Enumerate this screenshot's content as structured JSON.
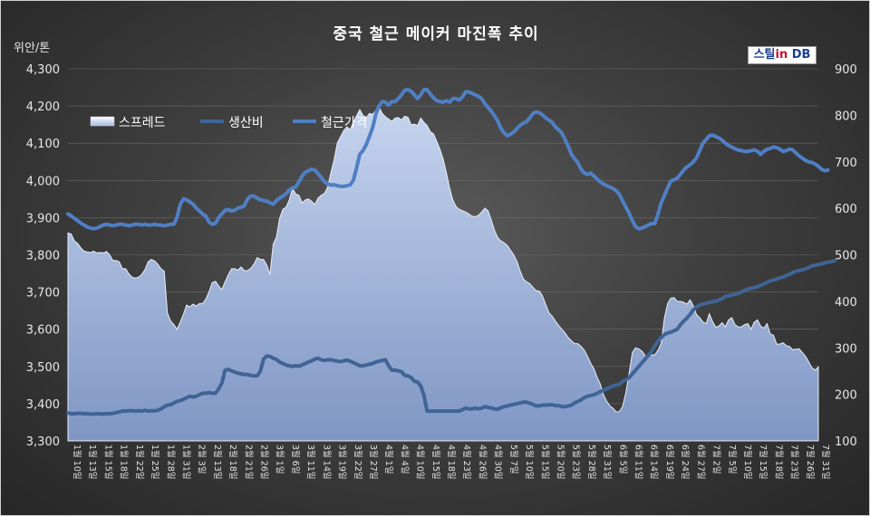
{
  "chart_data": {
    "type": "line",
    "title": "중국 철근 메이커 마진폭 추이",
    "left_unit": "위안/톤",
    "logo": {
      "text_main": "스틸",
      "text_in": "in",
      "text_db": "DB"
    },
    "y_left": {
      "min": 3300,
      "max": 4300,
      "ticks": [
        "3,300",
        "3,400",
        "3,500",
        "3,600",
        "3,700",
        "3,800",
        "3,900",
        "4,000",
        "4,100",
        "4,200",
        "4,300"
      ]
    },
    "y_right": {
      "min": 100,
      "max": 900,
      "ticks": [
        "100",
        "200",
        "300",
        "400",
        "500",
        "600",
        "700",
        "800",
        "900"
      ]
    },
    "legend": [
      "스프레드",
      "생산비",
      "철근가격"
    ],
    "colors": {
      "spread_fill_top": "#c5d4ee",
      "spread_fill_bottom": "#7f96c4",
      "production_cost": "#3f6495",
      "rebar_price": "#4f7fc4"
    },
    "x_labels": [
      "1월 10일",
      "1월 13일",
      "1월 15일",
      "1월 18일",
      "1월 22일",
      "1월 25일",
      "1월 28일",
      "1월 31일",
      "2월 3일",
      "2월 13일",
      "2월 18일",
      "2월 21일",
      "2월 26일",
      "3월 1일",
      "3월 6일",
      "3월 11일",
      "3월 14일",
      "3월 19일",
      "3월 22일",
      "3월 27일",
      "4월 1일",
      "4월 4일",
      "4월 10일",
      "4월 15일",
      "4월 18일",
      "4월 23일",
      "4월 26일",
      "4월 30일",
      "5월 7일",
      "5월 10일",
      "5월 15일",
      "5월 20일",
      "5월 23일",
      "5월 28일",
      "5월 31일",
      "6월 5일",
      "6월 11일",
      "6월 14일",
      "6월 19일",
      "6월 24일",
      "6월 27일",
      "7월 2일",
      "7월 5일",
      "7월 10일",
      "7월 15일",
      "7월 18일",
      "7월 23일",
      "7월 26일",
      "7월 31일"
    ],
    "series": [
      {
        "name": "스프레드",
        "axis": "right",
        "kind": "area",
        "values": [
          547,
          545,
          530,
          525,
          515,
          508,
          506,
          505,
          508,
          504,
          505,
          504,
          507,
          500,
          488,
          488,
          485,
          470,
          470,
          459,
          452,
          450,
          452,
          458,
          468,
          485,
          490,
          487,
          480,
          470,
          465,
          375,
          358,
          350,
          340,
          355,
          372,
          392,
          388,
          394,
          390,
          395,
          395,
          405,
          421,
          440,
          443,
          433,
          425,
          442,
          457,
          470,
          470,
          467,
          474,
          466,
          466,
          471,
          480,
          494,
          490,
          490,
          478,
          458,
          523,
          538,
          578,
          598,
          602,
          618,
          644,
          631,
          628,
          612,
          618,
          620,
          615,
          608,
          622,
          628,
          632,
          646,
          677,
          705,
          740,
          754,
          767,
          775,
          769,
          785,
          799,
          812,
          800,
          794,
          804,
          802,
          810,
          818,
          804,
          797,
          792,
          787,
          794,
          795,
          790,
          798,
          796,
          780,
          781,
          778,
          794,
          785,
          778,
          765,
          760,
          744,
          727,
          706,
          677,
          644,
          618,
          604,
          598,
          595,
          592,
          588,
          583,
          582,
          585,
          592,
          600,
          595,
          575,
          553,
          537,
          530,
          526,
          520,
          510,
          500,
          486,
          466,
          448,
          442,
          438,
          430,
          423,
          422,
          411,
          393,
          375,
          368,
          358,
          348,
          340,
          332,
          322,
          315,
          309,
          309,
          303,
          295,
          282,
          267,
          255,
          237,
          222,
          199,
          185,
          175,
          170,
          162,
          163,
          175,
          205,
          245,
          290,
          300,
          298,
          293,
          283,
          282,
          285,
          285,
          295,
          310,
          365,
          395,
          407,
          408,
          400,
          400,
          398,
          394,
          403,
          390,
          372,
          365,
          356,
          352,
          373,
          357,
          344,
          347,
          354,
          345,
          360,
          365,
          350,
          345,
          345,
          350,
          352,
          340,
          355,
          360,
          347,
          342,
          352,
          330,
          327,
          308,
          308,
          311,
          305,
          303,
          296,
          297,
          298,
          290,
          282,
          270,
          257,
          252,
          259
        ]
      },
      {
        "name": "생산비",
        "axis": "left",
        "kind": "line",
        "values": [
          3375,
          3373,
          3373,
          3374,
          3374,
          3373,
          3373,
          3372,
          3372,
          3373,
          3373,
          3372,
          3373,
          3373,
          3374,
          3376,
          3378,
          3380,
          3380,
          3381,
          3381,
          3380,
          3381,
          3380,
          3382,
          3380,
          3381,
          3381,
          3382,
          3386,
          3392,
          3396,
          3397,
          3402,
          3406,
          3408,
          3412,
          3416,
          3420,
          3418,
          3420,
          3424,
          3428,
          3428,
          3430,
          3428,
          3428,
          3440,
          3455,
          3490,
          3492,
          3488,
          3485,
          3482,
          3480,
          3478,
          3478,
          3476,
          3475,
          3475,
          3487,
          3520,
          3528,
          3527,
          3522,
          3519,
          3512,
          3508,
          3504,
          3502,
          3500,
          3502,
          3501,
          3504,
          3508,
          3512,
          3515,
          3520,
          3522,
          3518,
          3516,
          3518,
          3518,
          3516,
          3514,
          3513,
          3515,
          3517,
          3514,
          3510,
          3506,
          3502,
          3502,
          3504,
          3506,
          3508,
          3512,
          3514,
          3516,
          3518,
          3502,
          3490,
          3490,
          3488,
          3486,
          3476,
          3475,
          3470,
          3460,
          3458,
          3448,
          3422,
          3380,
          3380,
          3380,
          3380,
          3380,
          3380,
          3380,
          3380,
          3380,
          3380,
          3380,
          3384,
          3388,
          3386,
          3386,
          3388,
          3386,
          3388,
          3392,
          3390,
          3388,
          3386,
          3385,
          3389,
          3392,
          3394,
          3396,
          3398,
          3400,
          3402,
          3404,
          3404,
          3401,
          3398,
          3394,
          3394,
          3396,
          3396,
          3397,
          3397,
          3395,
          3395,
          3392,
          3392,
          3394,
          3396,
          3402,
          3406,
          3410,
          3416,
          3420,
          3422,
          3424,
          3428,
          3432,
          3436,
          3440,
          3444,
          3448,
          3450,
          3452,
          3460,
          3464,
          3470,
          3480,
          3490,
          3500,
          3510,
          3520,
          3530,
          3540,
          3555,
          3568,
          3578,
          3586,
          3590,
          3592,
          3596,
          3600,
          3612,
          3622,
          3630,
          3640,
          3652,
          3660,
          3665,
          3668,
          3670,
          3672,
          3674,
          3676,
          3678,
          3682,
          3688,
          3690,
          3692,
          3694,
          3696,
          3700,
          3704,
          3708,
          3710,
          3712,
          3714,
          3718,
          3722,
          3726,
          3730,
          3732,
          3735,
          3738,
          3740,
          3744,
          3748,
          3752,
          3756,
          3758,
          3760,
          3762,
          3766,
          3770,
          3772,
          3774,
          3776,
          3778,
          3780,
          3782,
          3784
        ]
      },
      {
        "name": "철근가격",
        "axis": "left",
        "kind": "line",
        "values": [
          3910,
          3905,
          3898,
          3892,
          3885,
          3880,
          3875,
          3872,
          3870,
          3872,
          3876,
          3880,
          3882,
          3880,
          3878,
          3880,
          3882,
          3882,
          3880,
          3878,
          3880,
          3882,
          3882,
          3880,
          3882,
          3880,
          3880,
          3882,
          3880,
          3880,
          3878,
          3880,
          3882,
          3882,
          3900,
          3935,
          3950,
          3948,
          3942,
          3936,
          3926,
          3918,
          3910,
          3904,
          3888,
          3882,
          3885,
          3900,
          3910,
          3920,
          3922,
          3918,
          3920,
          3926,
          3928,
          3932,
          3950,
          3958,
          3958,
          3952,
          3948,
          3946,
          3944,
          3940,
          3936,
          3946,
          3952,
          3958,
          3964,
          3974,
          3980,
          3982,
          3996,
          4012,
          4022,
          4026,
          4030,
          4028,
          4018,
          4008,
          3996,
          3990,
          3988,
          3988,
          3986,
          3984,
          3984,
          3986,
          3988,
          4000,
          4034,
          4070,
          4080,
          4096,
          4118,
          4142,
          4178,
          4200,
          4212,
          4210,
          4202,
          4212,
          4212,
          4220,
          4230,
          4242,
          4244,
          4240,
          4230,
          4220,
          4230,
          4244,
          4244,
          4232,
          4222,
          4214,
          4212,
          4210,
          4214,
          4210,
          4220,
          4220,
          4216,
          4224,
          4238,
          4238,
          4234,
          4230,
          4226,
          4220,
          4206,
          4196,
          4186,
          4174,
          4160,
          4140,
          4128,
          4120,
          4124,
          4130,
          4140,
          4148,
          4154,
          4158,
          4168,
          4180,
          4184,
          4182,
          4176,
          4168,
          4162,
          4156,
          4144,
          4136,
          4128,
          4110,
          4092,
          4070,
          4058,
          4048,
          4030,
          4020,
          4016,
          4020,
          4012,
          4004,
          3996,
          3990,
          3986,
          3982,
          3978,
          3972,
          3962,
          3944,
          3928,
          3912,
          3892,
          3876,
          3870,
          3872,
          3876,
          3880,
          3884,
          3884,
          3910,
          3940,
          3960,
          3980,
          3998,
          4002,
          4006,
          4016,
          4028,
          4036,
          4042,
          4050,
          4060,
          4080,
          4100,
          4110,
          4120,
          4122,
          4118,
          4114,
          4108,
          4100,
          4094,
          4090,
          4085,
          4082,
          4080,
          4078,
          4078,
          4080,
          4082,
          4078,
          4070,
          4078,
          4084,
          4086,
          4090,
          4088,
          4084,
          4078,
          4080,
          4084,
          4082,
          4074,
          4066,
          4060,
          4054,
          4050,
          4048,
          4044,
          4038,
          4030,
          4026,
          4028
        ]
      }
    ]
  }
}
